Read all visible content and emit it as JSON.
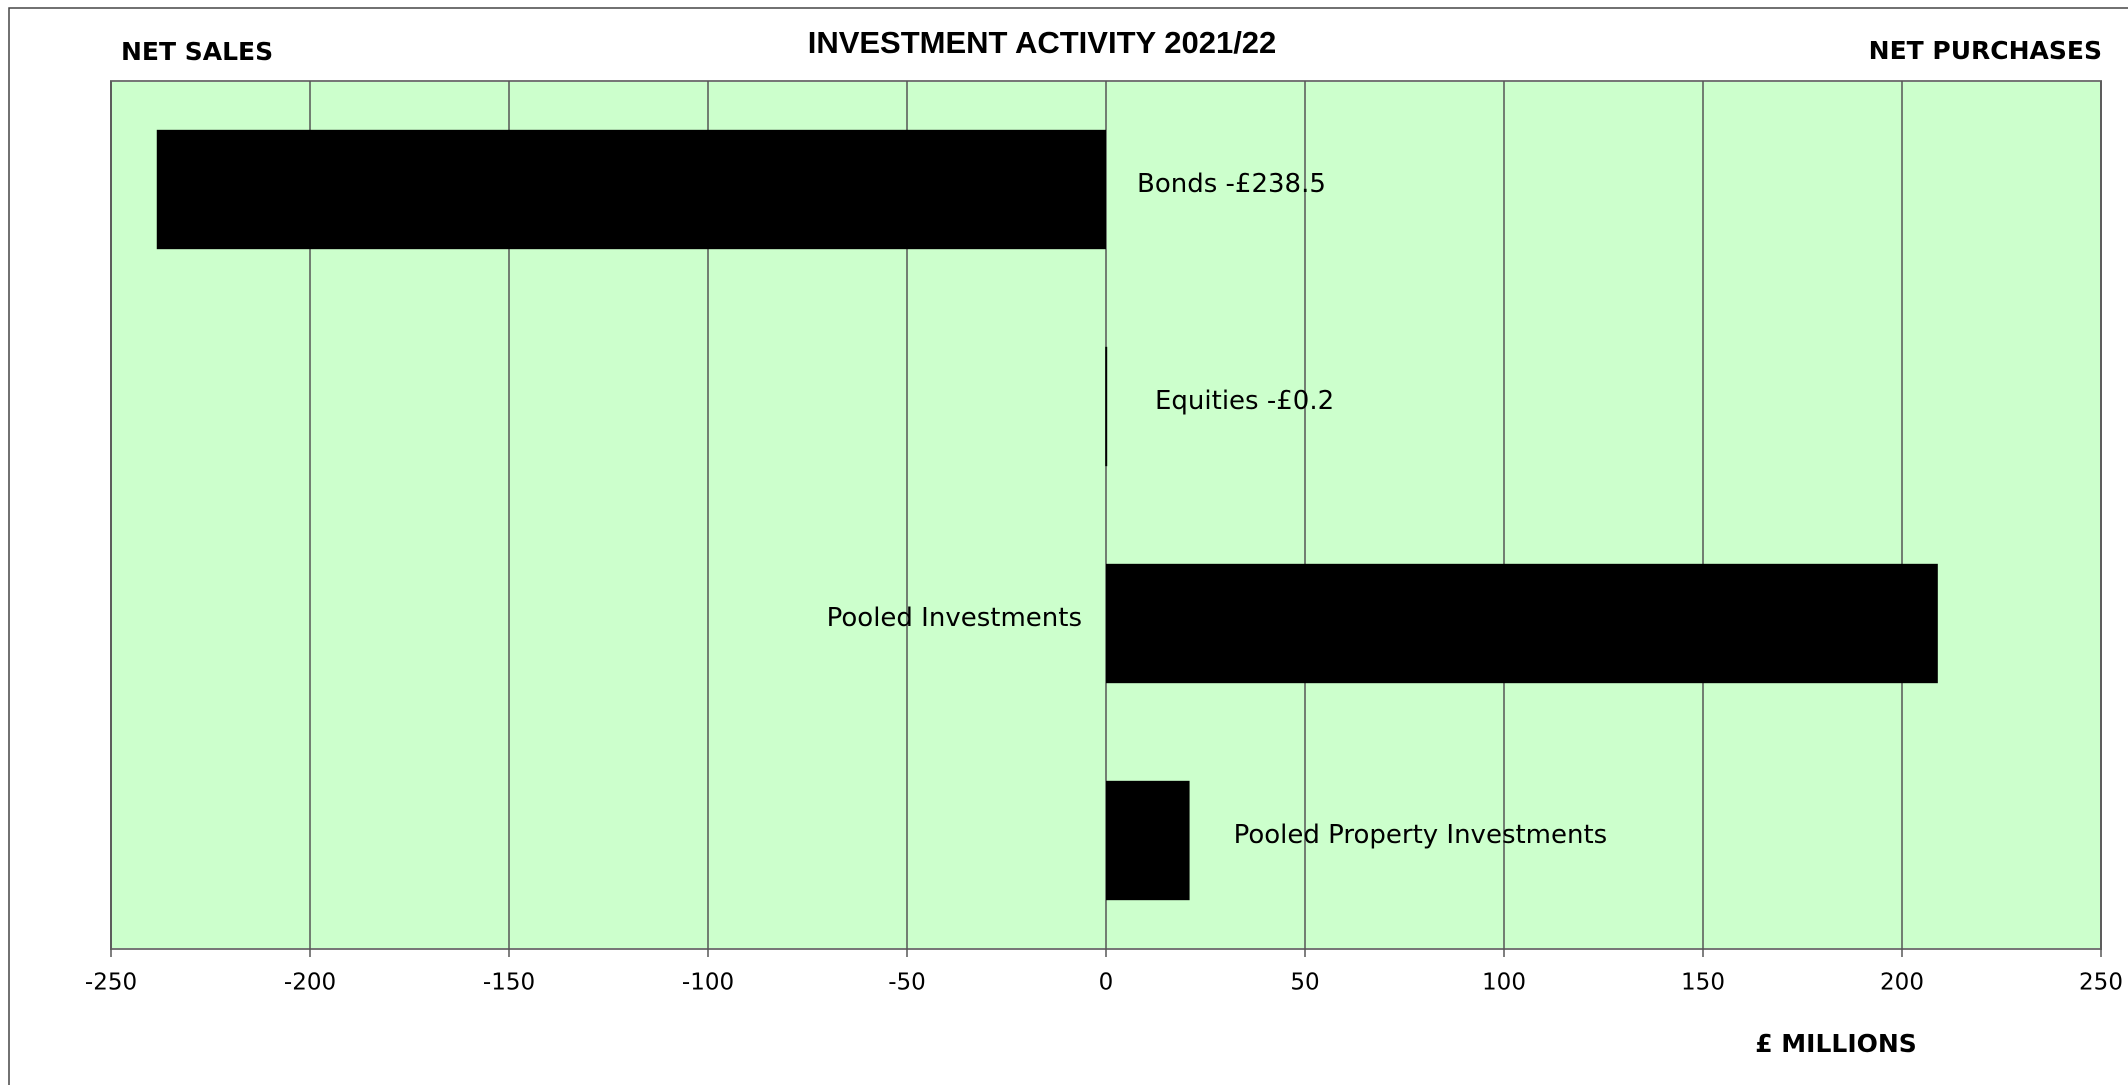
{
  "chart_data": {
    "type": "barh",
    "title": "INVESTMENT ACTIVITY 2021/22",
    "left_label": "NET SALES",
    "right_label": "NET PURCHASES",
    "xlabel": "£ MILLIONS",
    "categories": [
      "Bonds -£238.5",
      "Equities -£0.2",
      "Pooled Investments",
      "Pooled Property Investments"
    ],
    "values": [
      -238.5,
      -0.2,
      209,
      21
    ],
    "color": "#000000",
    "background": "#ccffcc",
    "xlim": [
      -250,
      250
    ],
    "xticks": [
      -250,
      -200,
      -150,
      -100,
      -50,
      0,
      50,
      100,
      150,
      200,
      250
    ],
    "grid": true
  }
}
